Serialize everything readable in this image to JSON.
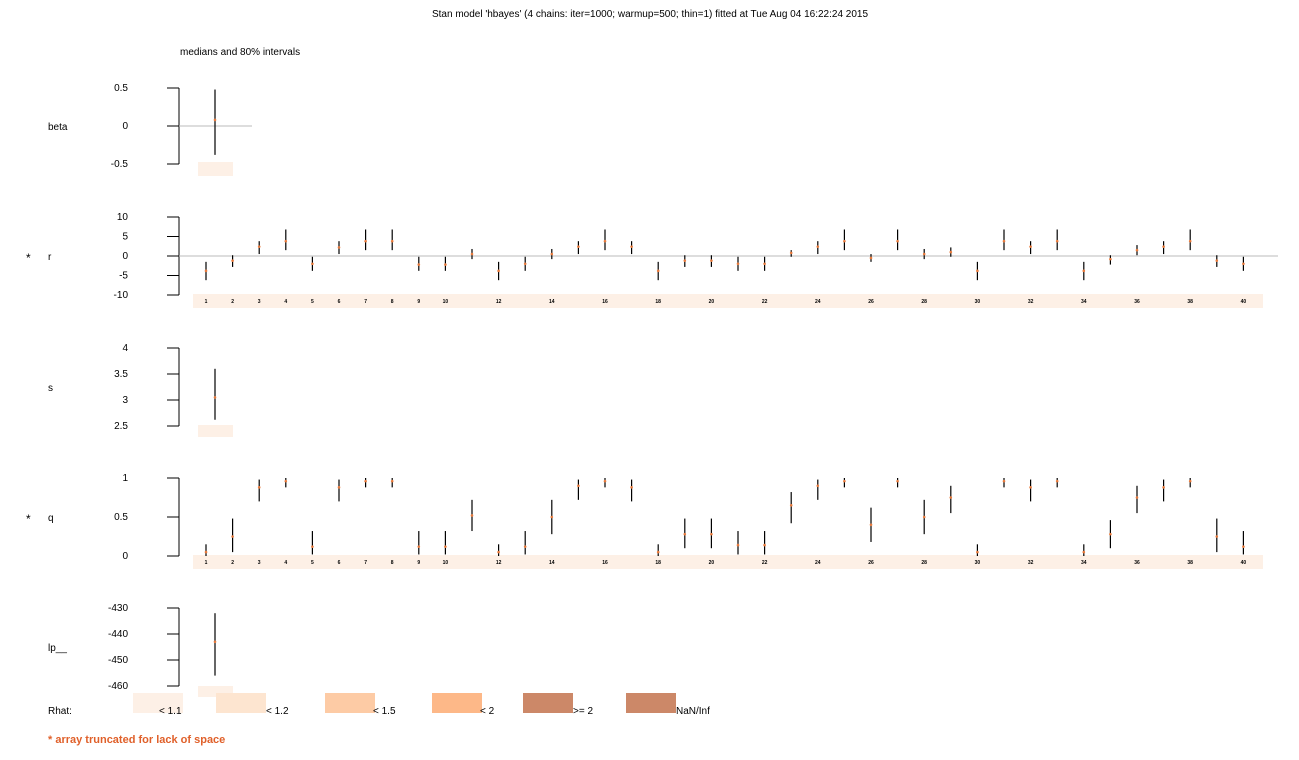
{
  "title": "Stan model 'hbayes' (4 chains: iter=1000; warmup=500; thin=1) fitted at Tue Aug 04 16:22:24 2015",
  "subtitle": "medians and 80% intervals",
  "truncation_note": "* array truncated for lack of space",
  "colors": {
    "interval": "#000000",
    "median": "#e87a3c",
    "zero_line": "#bbbbbb",
    "truncated_marker": "#f08a6a",
    "rhat_lt_1_1": "#fdf0e6",
    "rhat_lt_1_2": "#fde5d0",
    "rhat_lt_1_5": "#fdcba5",
    "rhat_lt_2": "#fdb888",
    "rhat_ge_2": "#cc8868",
    "rhat_nan": "#cc8868"
  },
  "rhat_legend": {
    "label": "Rhat:",
    "items": [
      {
        "label": "< 1.1",
        "color": "#fdf0e6"
      },
      {
        "label": "< 1.2",
        "color": "#fde5d0"
      },
      {
        "label": "< 1.5",
        "color": "#fdcba5"
      },
      {
        "label": "< 2",
        "color": "#fdb888"
      },
      {
        "label": ">= 2",
        "color": "#cc8868"
      },
      {
        "label": "NaN/Inf",
        "color": "#cc8868"
      }
    ]
  },
  "chart_data": {
    "type": "interval",
    "panels": [
      {
        "name": "beta",
        "truncated": false,
        "ylim": [
          -0.5,
          0.5
        ],
        "ticks": [
          "0.5",
          "0",
          "-0.5"
        ],
        "tick_values": [
          0.5,
          0,
          -0.5
        ],
        "zero_line": true,
        "index_labels": [],
        "values": [
          {
            "low": -0.38,
            "median": 0.08,
            "high": 0.48
          }
        ]
      },
      {
        "name": "r",
        "truncated": true,
        "ylim": [
          -10,
          10
        ],
        "ticks": [
          "10",
          "5",
          "0",
          "-5",
          "-10"
        ],
        "tick_values": [
          10,
          5,
          0,
          -5,
          -10
        ],
        "zero_line": true,
        "index_labels": [
          "1",
          "2",
          "3",
          "4",
          "5",
          "6",
          "7",
          "8",
          "9",
          "10",
          "12",
          "14",
          "16",
          "18",
          "20",
          "22",
          "24",
          "26",
          "28",
          "30",
          "32",
          "34",
          "36",
          "38",
          "40"
        ],
        "index_positions": [
          1,
          2,
          3,
          4,
          5,
          6,
          7,
          8,
          9,
          10,
          12,
          14,
          16,
          18,
          20,
          22,
          24,
          26,
          28,
          30,
          32,
          34,
          36,
          38,
          40
        ],
        "values": [
          {
            "low": -6.2,
            "median": -3.8,
            "high": -1.5
          },
          {
            "low": -2.8,
            "median": -1.2,
            "high": 0.2
          },
          {
            "low": 0.5,
            "median": 2.4,
            "high": 3.8
          },
          {
            "low": 1.5,
            "median": 3.8,
            "high": 6.8
          },
          {
            "low": -3.8,
            "median": -2.0,
            "high": -0.2
          },
          {
            "low": 0.5,
            "median": 2.2,
            "high": 3.8
          },
          {
            "low": 1.5,
            "median": 3.8,
            "high": 6.8
          },
          {
            "low": 1.5,
            "median": 3.8,
            "high": 6.8
          },
          {
            "low": -3.8,
            "median": -2.2,
            "high": -0.2
          },
          {
            "low": -3.8,
            "median": -2.2,
            "high": -0.2
          },
          {
            "low": -0.8,
            "median": 0.5,
            "high": 1.8
          },
          {
            "low": -6.2,
            "median": -3.8,
            "high": -1.5
          },
          {
            "low": -3.8,
            "median": -2.0,
            "high": -0.2
          },
          {
            "low": -0.8,
            "median": 0.5,
            "high": 1.8
          },
          {
            "low": 0.5,
            "median": 2.4,
            "high": 3.8
          },
          {
            "low": 1.5,
            "median": 3.8,
            "high": 6.8
          },
          {
            "low": 0.5,
            "median": 2.4,
            "high": 3.8
          },
          {
            "low": -6.2,
            "median": -3.8,
            "high": -1.5
          },
          {
            "low": -2.8,
            "median": -1.2,
            "high": 0.2
          },
          {
            "low": -2.8,
            "median": -1.2,
            "high": 0.2
          },
          {
            "low": -3.8,
            "median": -2.0,
            "high": -0.2
          },
          {
            "low": -3.8,
            "median": -2.0,
            "high": -0.2
          },
          {
            "low": -0.2,
            "median": 0.8,
            "high": 1.5
          },
          {
            "low": 0.5,
            "median": 2.4,
            "high": 3.8
          },
          {
            "low": 1.5,
            "median": 3.8,
            "high": 6.8
          },
          {
            "low": -1.5,
            "median": -0.5,
            "high": 0.5
          },
          {
            "low": 1.5,
            "median": 3.8,
            "high": 6.8
          },
          {
            "low": -0.8,
            "median": 0.5,
            "high": 1.8
          },
          {
            "low": -0.2,
            "median": 1.0,
            "high": 2.2
          },
          {
            "low": -6.2,
            "median": -3.8,
            "high": -1.5
          },
          {
            "low": 1.5,
            "median": 3.8,
            "high": 6.8
          },
          {
            "low": 0.5,
            "median": 2.4,
            "high": 3.8
          },
          {
            "low": 1.5,
            "median": 3.8,
            "high": 6.8
          },
          {
            "low": -6.2,
            "median": -3.8,
            "high": -1.5
          },
          {
            "low": -2.2,
            "median": -0.8,
            "high": 0.2
          },
          {
            "low": 0.2,
            "median": 1.5,
            "high": 2.8
          },
          {
            "low": 0.5,
            "median": 2.4,
            "high": 3.8
          },
          {
            "low": 1.5,
            "median": 3.8,
            "high": 6.8
          },
          {
            "low": -2.8,
            "median": -1.2,
            "high": 0.2
          },
          {
            "low": -3.8,
            "median": -2.0,
            "high": -0.2
          }
        ]
      },
      {
        "name": "s",
        "truncated": false,
        "ylim": [
          2.5,
          4
        ],
        "ticks": [
          "4",
          "3.5",
          "3",
          "2.5"
        ],
        "tick_values": [
          4,
          3.5,
          3,
          2.5
        ],
        "zero_line": false,
        "index_labels": [],
        "values": [
          {
            "low": 2.62,
            "median": 3.05,
            "high": 3.6
          }
        ]
      },
      {
        "name": "q",
        "truncated": true,
        "ylim": [
          0,
          1
        ],
        "ticks": [
          "1",
          "0.5",
          "0"
        ],
        "tick_values": [
          1,
          0.5,
          0
        ],
        "zero_line": false,
        "index_labels": [
          "1",
          "2",
          "3",
          "4",
          "5",
          "6",
          "7",
          "8",
          "9",
          "10",
          "12",
          "14",
          "16",
          "18",
          "20",
          "22",
          "24",
          "26",
          "28",
          "30",
          "32",
          "34",
          "36",
          "38",
          "40"
        ],
        "index_positions": [
          1,
          2,
          3,
          4,
          5,
          6,
          7,
          8,
          9,
          10,
          12,
          14,
          16,
          18,
          20,
          22,
          24,
          26,
          28,
          30,
          32,
          34,
          36,
          38,
          40
        ],
        "values": [
          {
            "low": 0.0,
            "median": 0.05,
            "high": 0.15
          },
          {
            "low": 0.05,
            "median": 0.25,
            "high": 0.48
          },
          {
            "low": 0.7,
            "median": 0.88,
            "high": 0.98
          },
          {
            "low": 0.88,
            "median": 0.96,
            "high": 1.0
          },
          {
            "low": 0.02,
            "median": 0.12,
            "high": 0.32
          },
          {
            "low": 0.7,
            "median": 0.88,
            "high": 0.98
          },
          {
            "low": 0.88,
            "median": 0.96,
            "high": 1.0
          },
          {
            "low": 0.88,
            "median": 0.96,
            "high": 1.0
          },
          {
            "low": 0.02,
            "median": 0.12,
            "high": 0.32
          },
          {
            "low": 0.02,
            "median": 0.12,
            "high": 0.32
          },
          {
            "low": 0.32,
            "median": 0.52,
            "high": 0.72
          },
          {
            "low": 0.0,
            "median": 0.05,
            "high": 0.15
          },
          {
            "low": 0.02,
            "median": 0.12,
            "high": 0.32
          },
          {
            "low": 0.28,
            "median": 0.5,
            "high": 0.72
          },
          {
            "low": 0.72,
            "median": 0.9,
            "high": 0.98
          },
          {
            "low": 0.88,
            "median": 0.96,
            "high": 1.0
          },
          {
            "low": 0.7,
            "median": 0.88,
            "high": 0.98
          },
          {
            "low": 0.0,
            "median": 0.05,
            "high": 0.15
          },
          {
            "low": 0.1,
            "median": 0.28,
            "high": 0.48
          },
          {
            "low": 0.1,
            "median": 0.28,
            "high": 0.48
          },
          {
            "low": 0.02,
            "median": 0.14,
            "high": 0.32
          },
          {
            "low": 0.02,
            "median": 0.14,
            "high": 0.32
          },
          {
            "low": 0.42,
            "median": 0.65,
            "high": 0.82
          },
          {
            "low": 0.72,
            "median": 0.9,
            "high": 0.98
          },
          {
            "low": 0.88,
            "median": 0.96,
            "high": 1.0
          },
          {
            "low": 0.18,
            "median": 0.4,
            "high": 0.62
          },
          {
            "low": 0.88,
            "median": 0.96,
            "high": 1.0
          },
          {
            "low": 0.28,
            "median": 0.5,
            "high": 0.72
          },
          {
            "low": 0.55,
            "median": 0.75,
            "high": 0.9
          },
          {
            "low": 0.0,
            "median": 0.05,
            "high": 0.15
          },
          {
            "low": 0.88,
            "median": 0.96,
            "high": 1.0
          },
          {
            "low": 0.7,
            "median": 0.88,
            "high": 0.98
          },
          {
            "low": 0.88,
            "median": 0.96,
            "high": 1.0
          },
          {
            "low": 0.0,
            "median": 0.05,
            "high": 0.15
          },
          {
            "low": 0.1,
            "median": 0.28,
            "high": 0.46
          },
          {
            "low": 0.55,
            "median": 0.75,
            "high": 0.9
          },
          {
            "low": 0.7,
            "median": 0.88,
            "high": 0.98
          },
          {
            "low": 0.88,
            "median": 0.96,
            "high": 1.0
          },
          {
            "low": 0.05,
            "median": 0.25,
            "high": 0.48
          },
          {
            "low": 0.02,
            "median": 0.12,
            "high": 0.32
          }
        ]
      },
      {
        "name": "lp__",
        "truncated": false,
        "ylim": [
          -460,
          -430
        ],
        "ticks": [
          "-430",
          "-440",
          "-450",
          "-460"
        ],
        "tick_values": [
          -430,
          -440,
          -450,
          -460
        ],
        "zero_line": false,
        "index_labels": [],
        "values": [
          {
            "low": -456,
            "median": -443,
            "high": -432
          }
        ]
      }
    ]
  }
}
